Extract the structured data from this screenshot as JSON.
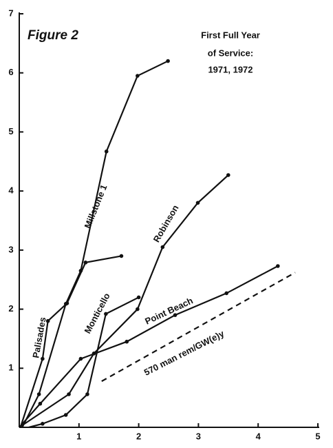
{
  "chart_data": {
    "type": "line",
    "title": "Figure 2",
    "annotation": [
      "First Full Year",
      "of Service:",
      "1971, 1972"
    ],
    "xlim": [
      0,
      5
    ],
    "xticks": [
      1,
      2,
      3,
      4,
      5
    ],
    "ylim": [
      0,
      7
    ],
    "yticks": [
      1,
      2,
      3,
      4,
      5,
      6,
      7
    ],
    "series": [
      {
        "name": "Millstone 1",
        "color": "#111111",
        "x": [
          0.05,
          0.33,
          0.78,
          1.03,
          1.46,
          1.98,
          2.49
        ],
        "values": [
          0,
          0.56,
          2.09,
          2.65,
          4.67,
          5.95,
          6.2
        ]
      },
      {
        "name": "Palisades",
        "color": "#111111",
        "x": [
          0.02,
          0.39,
          0.48,
          0.8,
          1.11,
          1.71
        ],
        "values": [
          0,
          1.16,
          1.8,
          2.1,
          2.79,
          2.9
        ]
      },
      {
        "name": "Monticello",
        "color": "#111111",
        "x": [
          0.16,
          0.39,
          0.78,
          1.14,
          1.45,
          2.0
        ],
        "values": [
          0,
          0.06,
          0.21,
          0.56,
          1.92,
          2.2
        ]
      },
      {
        "name": "Robinson",
        "color": "#111111",
        "x": [
          0,
          0.83,
          1.25,
          1.98,
          2.4,
          2.99,
          3.5
        ],
        "values": [
          0,
          0.56,
          1.25,
          2.0,
          3.05,
          3.8,
          4.27
        ]
      },
      {
        "name": "Point Beach",
        "color": "#111111",
        "x": [
          0,
          0.35,
          1.03,
          1.8,
          2.61,
          3.47,
          4.33
        ],
        "values": [
          0,
          0.4,
          1.16,
          1.45,
          1.9,
          2.27,
          2.73
        ]
      },
      {
        "name": "570 man rem/GW(e)y",
        "color": "#111111",
        "dashed": true,
        "x": [
          1.38,
          4.62
        ],
        "values": [
          0.78,
          2.62
        ]
      }
    ]
  }
}
